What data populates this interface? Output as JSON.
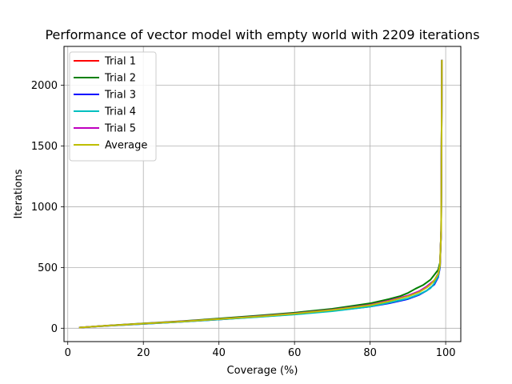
{
  "chart_data": {
    "type": "line",
    "title": "Performance of vector model with empty world with 2209 iterations",
    "xlabel": "Coverage (%)",
    "ylabel": "Iterations",
    "xlim": [
      -1,
      104
    ],
    "ylim": [
      -110,
      2320
    ],
    "xticks": [
      0,
      20,
      40,
      60,
      80,
      100
    ],
    "yticks": [
      0,
      500,
      1000,
      1500,
      2000
    ],
    "grid": true,
    "legend_position": "upper-left",
    "series": [
      {
        "name": "Trial 1",
        "color": "#ff0000",
        "points": [
          [
            3,
            5
          ],
          [
            10,
            20
          ],
          [
            20,
            38
          ],
          [
            30,
            55
          ],
          [
            40,
            75
          ],
          [
            50,
            97
          ],
          [
            60,
            120
          ],
          [
            70,
            150
          ],
          [
            80,
            190
          ],
          [
            85,
            225
          ],
          [
            90,
            265
          ],
          [
            93,
            300
          ],
          [
            95,
            340
          ],
          [
            97,
            390
          ],
          [
            98,
            440
          ],
          [
            98.5,
            520
          ],
          [
            98.8,
            800
          ],
          [
            99,
            2209
          ]
        ]
      },
      {
        "name": "Trial 2",
        "color": "#008000",
        "points": [
          [
            3,
            5
          ],
          [
            10,
            21
          ],
          [
            20,
            40
          ],
          [
            30,
            58
          ],
          [
            40,
            80
          ],
          [
            50,
            103
          ],
          [
            60,
            128
          ],
          [
            70,
            160
          ],
          [
            80,
            205
          ],
          [
            85,
            240
          ],
          [
            88,
            265
          ],
          [
            90,
            290
          ],
          [
            92,
            325
          ],
          [
            94,
            355
          ],
          [
            96,
            400
          ],
          [
            97,
            440
          ],
          [
            98,
            480
          ],
          [
            98.5,
            540
          ],
          [
            98.8,
            800
          ],
          [
            99,
            2209
          ]
        ]
      },
      {
        "name": "Trial 3",
        "color": "#0000ff",
        "points": [
          [
            3,
            5
          ],
          [
            10,
            19
          ],
          [
            20,
            36
          ],
          [
            30,
            53
          ],
          [
            40,
            72
          ],
          [
            50,
            93
          ],
          [
            60,
            115
          ],
          [
            70,
            143
          ],
          [
            80,
            178
          ],
          [
            85,
            205
          ],
          [
            90,
            240
          ],
          [
            93,
            275
          ],
          [
            95,
            310
          ],
          [
            97,
            360
          ],
          [
            98,
            420
          ],
          [
            98.5,
            500
          ],
          [
            98.8,
            800
          ],
          [
            99,
            2209
          ]
        ]
      },
      {
        "name": "Trial 4",
        "color": "#00bfbf",
        "points": [
          [
            3,
            5
          ],
          [
            10,
            19
          ],
          [
            20,
            36
          ],
          [
            30,
            53
          ],
          [
            40,
            72
          ],
          [
            50,
            92
          ],
          [
            60,
            113
          ],
          [
            70,
            140
          ],
          [
            80,
            178
          ],
          [
            85,
            210
          ],
          [
            90,
            245
          ],
          [
            93,
            280
          ],
          [
            95,
            310
          ],
          [
            96,
            330
          ],
          [
            97,
            370
          ],
          [
            98,
            430
          ],
          [
            98.5,
            510
          ],
          [
            98.8,
            800
          ],
          [
            99,
            2209
          ]
        ]
      },
      {
        "name": "Trial 5",
        "color": "#bf00bf",
        "points": [
          [
            3,
            5
          ],
          [
            10,
            20
          ],
          [
            20,
            38
          ],
          [
            30,
            56
          ],
          [
            40,
            76
          ],
          [
            50,
            98
          ],
          [
            60,
            122
          ],
          [
            70,
            153
          ],
          [
            80,
            193
          ],
          [
            85,
            228
          ],
          [
            90,
            268
          ],
          [
            93,
            305
          ],
          [
            95,
            345
          ],
          [
            97,
            395
          ],
          [
            98,
            450
          ],
          [
            98.5,
            520
          ],
          [
            98.8,
            800
          ],
          [
            99,
            2209
          ]
        ]
      },
      {
        "name": "Average",
        "color": "#bfbf00",
        "points": [
          [
            3,
            5
          ],
          [
            10,
            20
          ],
          [
            20,
            38
          ],
          [
            30,
            55
          ],
          [
            40,
            75
          ],
          [
            50,
            96
          ],
          [
            60,
            120
          ],
          [
            70,
            150
          ],
          [
            80,
            189
          ],
          [
            85,
            222
          ],
          [
            90,
            262
          ],
          [
            93,
            297
          ],
          [
            95,
            335
          ],
          [
            96,
            360
          ],
          [
            97,
            395
          ],
          [
            98,
            445
          ],
          [
            98.5,
            520
          ],
          [
            98.8,
            800
          ],
          [
            99,
            2209
          ]
        ]
      }
    ]
  }
}
